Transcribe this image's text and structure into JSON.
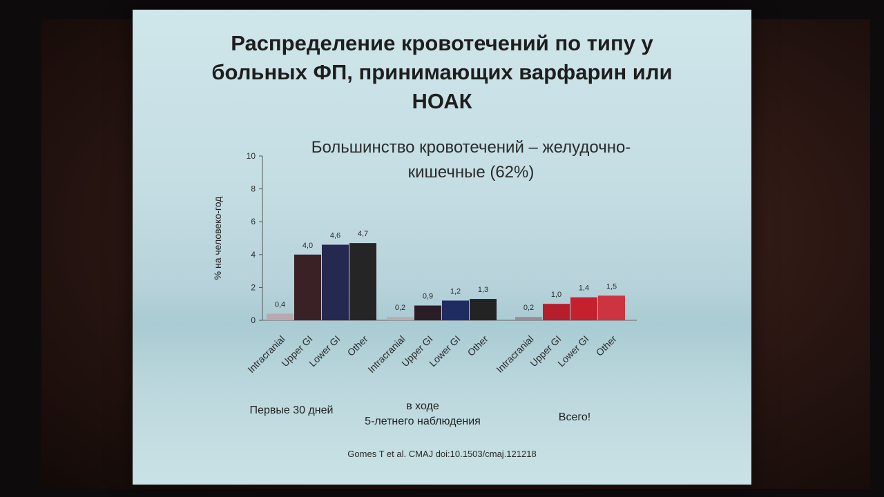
{
  "slide": {
    "title_line1": "Распределение кровотечений по типу у",
    "title_line2": "больных ФП, принимающих варфарин или",
    "title_line3": "НОАК",
    "subtitle_line1": "Большинство кровотечений – желудочно-",
    "subtitle_line2": "кишечные (62%)",
    "citation": "Gomes T et al. CMAJ doi:10.1503/cmaj.121218"
  },
  "chart_data": {
    "type": "bar",
    "ylabel": "% на человеко-год",
    "ylim": [
      0,
      10
    ],
    "yticks": [
      "0",
      "2",
      "4",
      "6",
      "8",
      "10"
    ],
    "categories": [
      "Intracranial",
      "Upper GI",
      "Lower GI",
      "Other"
    ],
    "groups": [
      {
        "label_line1": "Первые 30 дней",
        "label_line2": "",
        "values": [
          0.4,
          4.0,
          4.6,
          4.7
        ],
        "value_labels": [
          "0,4",
          "4,0",
          "4,6",
          "4,7"
        ],
        "colors": [
          "#b7a9ae",
          "#3a2125",
          "#25284f",
          "#252525"
        ]
      },
      {
        "label_line1": "в ходе",
        "label_line2": "5-летнего наблюдения",
        "values": [
          0.2,
          0.9,
          1.2,
          1.3
        ],
        "value_labels": [
          "0,2",
          "0,9",
          "1,2",
          "1,3"
        ],
        "colors": [
          "#b9adb2",
          "#2b1c26",
          "#1e2c62",
          "#232323"
        ]
      },
      {
        "label_line1": "Всего!",
        "label_line2": "",
        "values": [
          0.2,
          1.0,
          1.4,
          1.5
        ],
        "value_labels": [
          "0,2",
          "1,0",
          "1,4",
          "1,5"
        ],
        "colors": [
          "#9e8a96",
          "#b61e2c",
          "#c4202e",
          "#cc3540"
        ]
      }
    ],
    "grid": false,
    "legend": "none"
  }
}
